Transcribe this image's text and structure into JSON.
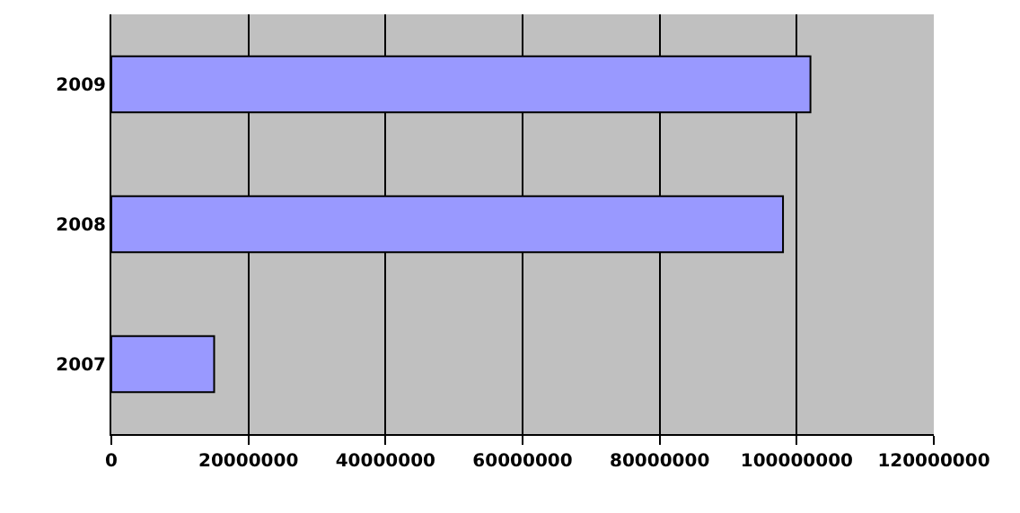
{
  "chart_data": {
    "type": "bar",
    "orientation": "horizontal",
    "categories": [
      "2009",
      "2008",
      "2007"
    ],
    "values": [
      102000000,
      98000000,
      15000000
    ],
    "color": "#9999ff",
    "xlim": [
      0,
      120000000
    ],
    "xticks": [
      0,
      20000000,
      40000000,
      60000000,
      80000000,
      100000000,
      120000000
    ],
    "grid": "x"
  }
}
